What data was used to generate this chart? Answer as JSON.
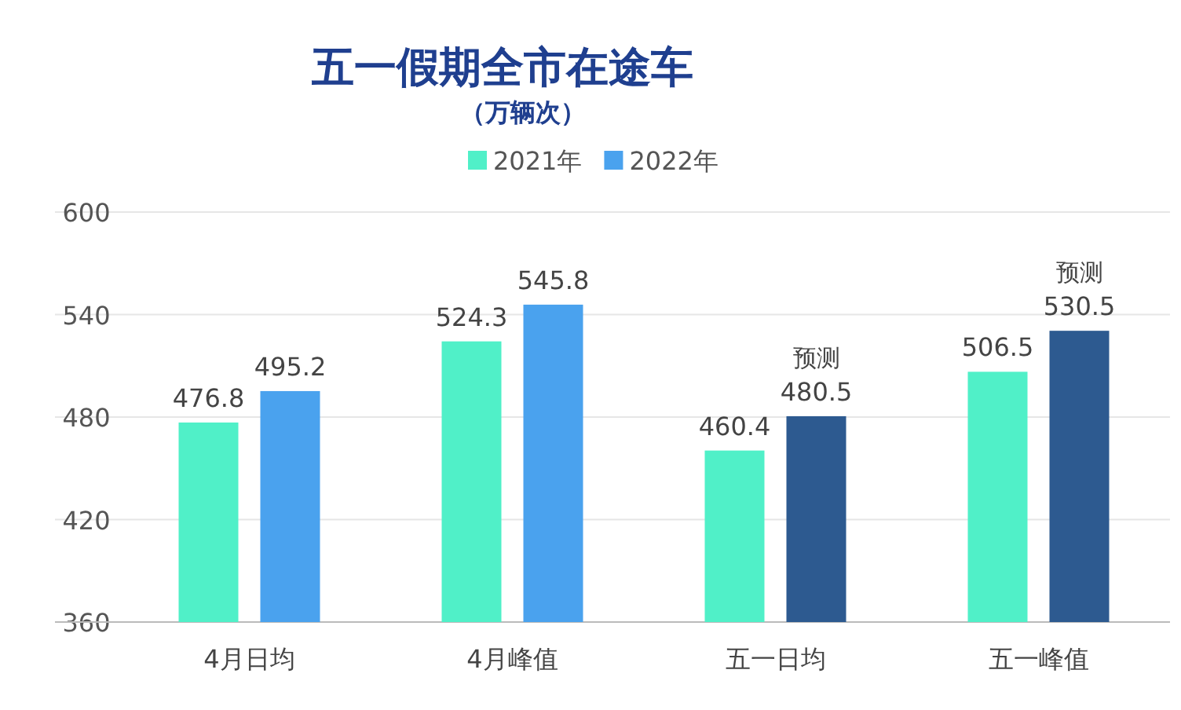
{
  "chart_data": {
    "type": "bar",
    "title": "五一假期全市在途车",
    "subtitle": "（万辆次）",
    "categories": [
      "4月日均",
      "4月峰值",
      "五一日均",
      "五一峰值"
    ],
    "series": [
      {
        "name": "2021年",
        "color": "#50f0c8",
        "values": [
          476.8,
          524.3,
          460.4,
          506.5
        ],
        "value_labels": [
          "476.8",
          "524.3",
          "460.4",
          "506.5"
        ]
      },
      {
        "name": "2022年",
        "color": "#4aa2ee",
        "colors": [
          "#4aa2ee",
          "#4aa2ee",
          "#2d5a90",
          "#2d5a90"
        ],
        "values": [
          495.2,
          545.8,
          480.5,
          530.5
        ],
        "value_labels": [
          "495.2",
          "545.8",
          "预测\n480.5",
          "预测\n530.5"
        ]
      }
    ],
    "ylim": [
      360,
      600
    ],
    "yticks": [
      360,
      420,
      480,
      540,
      600
    ],
    "grid": "y",
    "legend": "top"
  }
}
